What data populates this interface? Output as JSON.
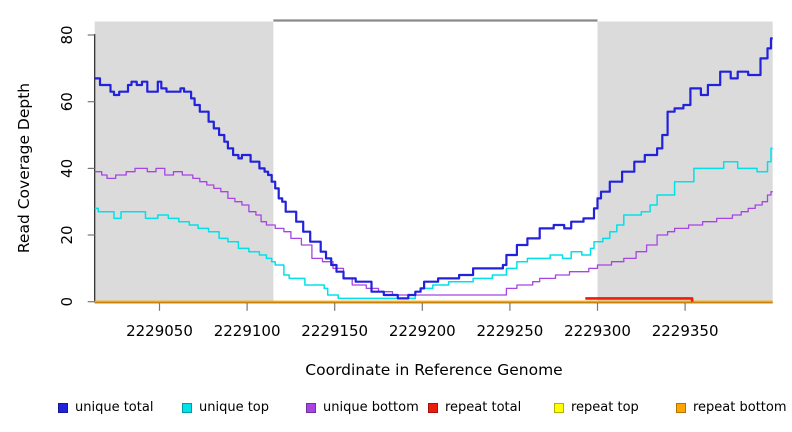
{
  "figure": {
    "background": "#ffffff"
  },
  "chart_data": {
    "type": "line",
    "title": "",
    "xlabel": "Coordinate in Reference Genome",
    "ylabel": "Read Coverage Depth",
    "xlim": [
      2229013,
      2229400
    ],
    "ylim": [
      0,
      80
    ],
    "x_ticks": [
      2229050,
      2229100,
      2229150,
      2229200,
      2229250,
      2229300,
      2229350
    ],
    "y_ticks": [
      0,
      20,
      40,
      60,
      80
    ],
    "grid": false,
    "legend_position": "bottom",
    "shaded_regions": [
      {
        "from": 2229013,
        "to": 2229115,
        "color": "#dbdbdb"
      },
      {
        "from": 2229300,
        "to": 2229400,
        "color": "#dbdbdb"
      }
    ],
    "unique_region_bar": {
      "from": 2229115,
      "to": 2229300,
      "color": "#8a8a8a"
    },
    "series": [
      {
        "name": "unique total",
        "color": "#2222da",
        "width": 2.2,
        "points": [
          [
            2229013,
            67
          ],
          [
            2229016,
            65
          ],
          [
            2229022,
            63
          ],
          [
            2229024,
            62
          ],
          [
            2229027,
            63
          ],
          [
            2229032,
            65
          ],
          [
            2229034,
            66
          ],
          [
            2229037,
            65
          ],
          [
            2229040,
            66
          ],
          [
            2229043,
            63
          ],
          [
            2229049,
            66
          ],
          [
            2229051,
            64
          ],
          [
            2229054,
            63
          ],
          [
            2229062,
            64
          ],
          [
            2229064,
            63
          ],
          [
            2229068,
            61
          ],
          [
            2229070,
            59
          ],
          [
            2229073,
            57
          ],
          [
            2229078,
            54
          ],
          [
            2229081,
            52
          ],
          [
            2229084,
            50
          ],
          [
            2229087,
            48
          ],
          [
            2229089,
            46
          ],
          [
            2229092,
            44
          ],
          [
            2229095,
            43
          ],
          [
            2229097,
            44
          ],
          [
            2229102,
            42
          ],
          [
            2229107,
            40
          ],
          [
            2229110,
            39
          ],
          [
            2229112,
            38
          ],
          [
            2229114,
            36
          ],
          [
            2229116,
            34
          ],
          [
            2229118,
            31
          ],
          [
            2229120,
            30
          ],
          [
            2229122,
            27
          ],
          [
            2229128,
            24
          ],
          [
            2229132,
            21
          ],
          [
            2229136,
            18
          ],
          [
            2229142,
            15
          ],
          [
            2229145,
            13
          ],
          [
            2229148,
            11
          ],
          [
            2229151,
            9
          ],
          [
            2229155,
            7
          ],
          [
            2229162,
            6
          ],
          [
            2229171,
            3
          ],
          [
            2229178,
            2
          ],
          [
            2229186,
            1
          ],
          [
            2229192,
            2
          ],
          [
            2229196,
            3
          ],
          [
            2229199,
            4
          ],
          [
            2229201,
            6
          ],
          [
            2229209,
            7
          ],
          [
            2229221,
            8
          ],
          [
            2229229,
            10
          ],
          [
            2229246,
            11
          ],
          [
            2229248,
            14
          ],
          [
            2229254,
            17
          ],
          [
            2229260,
            19
          ],
          [
            2229267,
            22
          ],
          [
            2229275,
            23
          ],
          [
            2229281,
            22
          ],
          [
            2229285,
            24
          ],
          [
            2229292,
            25
          ],
          [
            2229298,
            28
          ],
          [
            2229300,
            31
          ],
          [
            2229302,
            33
          ],
          [
            2229307,
            36
          ],
          [
            2229314,
            39
          ],
          [
            2229321,
            42
          ],
          [
            2229327,
            44
          ],
          [
            2229334,
            46
          ],
          [
            2229337,
            50
          ],
          [
            2229340,
            57
          ],
          [
            2229344,
            58
          ],
          [
            2229349,
            59
          ],
          [
            2229353,
            64
          ],
          [
            2229359,
            62
          ],
          [
            2229363,
            65
          ],
          [
            2229370,
            69
          ],
          [
            2229376,
            67
          ],
          [
            2229380,
            69
          ],
          [
            2229386,
            68
          ],
          [
            2229393,
            73
          ],
          [
            2229397,
            76
          ],
          [
            2229399,
            79
          ],
          [
            2229400,
            79
          ]
        ]
      },
      {
        "name": "unique top",
        "color": "#00e1ea",
        "width": 1.5,
        "points": [
          [
            2229013,
            28
          ],
          [
            2229015,
            27
          ],
          [
            2229024,
            25
          ],
          [
            2229028,
            27
          ],
          [
            2229042,
            25
          ],
          [
            2229049,
            26
          ],
          [
            2229055,
            25
          ],
          [
            2229061,
            24
          ],
          [
            2229067,
            23
          ],
          [
            2229072,
            22
          ],
          [
            2229078,
            21
          ],
          [
            2229084,
            19
          ],
          [
            2229089,
            18
          ],
          [
            2229095,
            16
          ],
          [
            2229101,
            15
          ],
          [
            2229107,
            14
          ],
          [
            2229111,
            13
          ],
          [
            2229114,
            12
          ],
          [
            2229116,
            11
          ],
          [
            2229121,
            8
          ],
          [
            2229124,
            7
          ],
          [
            2229133,
            5
          ],
          [
            2229144,
            4
          ],
          [
            2229146,
            2
          ],
          [
            2229152,
            1
          ],
          [
            2229190,
            1
          ],
          [
            2229196,
            3
          ],
          [
            2229199,
            4
          ],
          [
            2229206,
            5
          ],
          [
            2229215,
            6
          ],
          [
            2229229,
            7
          ],
          [
            2229240,
            8
          ],
          [
            2229248,
            10
          ],
          [
            2229254,
            12
          ],
          [
            2229260,
            13
          ],
          [
            2229273,
            14
          ],
          [
            2229280,
            13
          ],
          [
            2229285,
            15
          ],
          [
            2229291,
            14
          ],
          [
            2229296,
            16
          ],
          [
            2229298,
            18
          ],
          [
            2229303,
            19
          ],
          [
            2229307,
            21
          ],
          [
            2229311,
            23
          ],
          [
            2229315,
            26
          ],
          [
            2229325,
            27
          ],
          [
            2229330,
            29
          ],
          [
            2229334,
            32
          ],
          [
            2229344,
            36
          ],
          [
            2229355,
            40
          ],
          [
            2229372,
            42
          ],
          [
            2229380,
            40
          ],
          [
            2229391,
            39
          ],
          [
            2229397,
            42
          ],
          [
            2229399,
            46
          ],
          [
            2229400,
            46
          ]
        ]
      },
      {
        "name": "unique bottom",
        "color": "#a644e4",
        "width": 1.3,
        "points": [
          [
            2229013,
            39
          ],
          [
            2229017,
            38
          ],
          [
            2229020,
            37
          ],
          [
            2229025,
            38
          ],
          [
            2229031,
            39
          ],
          [
            2229036,
            40
          ],
          [
            2229043,
            39
          ],
          [
            2229048,
            40
          ],
          [
            2229053,
            38
          ],
          [
            2229058,
            39
          ],
          [
            2229063,
            38
          ],
          [
            2229069,
            37
          ],
          [
            2229073,
            36
          ],
          [
            2229077,
            35
          ],
          [
            2229081,
            34
          ],
          [
            2229085,
            33
          ],
          [
            2229089,
            31
          ],
          [
            2229093,
            30
          ],
          [
            2229097,
            29
          ],
          [
            2229101,
            27
          ],
          [
            2229105,
            26
          ],
          [
            2229108,
            24
          ],
          [
            2229111,
            23
          ],
          [
            2229116,
            22
          ],
          [
            2229121,
            21
          ],
          [
            2229125,
            19
          ],
          [
            2229131,
            17
          ],
          [
            2229137,
            13
          ],
          [
            2229143,
            12
          ],
          [
            2229149,
            10
          ],
          [
            2229155,
            7
          ],
          [
            2229160,
            5
          ],
          [
            2229168,
            4
          ],
          [
            2229175,
            3
          ],
          [
            2229183,
            2
          ],
          [
            2229246,
            2
          ],
          [
            2229248,
            4
          ],
          [
            2229254,
            5
          ],
          [
            2229263,
            6
          ],
          [
            2229267,
            7
          ],
          [
            2229276,
            8
          ],
          [
            2229284,
            9
          ],
          [
            2229295,
            10
          ],
          [
            2229300,
            11
          ],
          [
            2229308,
            12
          ],
          [
            2229315,
            13
          ],
          [
            2229322,
            15
          ],
          [
            2229328,
            17
          ],
          [
            2229334,
            20
          ],
          [
            2229340,
            21
          ],
          [
            2229344,
            22
          ],
          [
            2229352,
            23
          ],
          [
            2229360,
            24
          ],
          [
            2229368,
            25
          ],
          [
            2229377,
            26
          ],
          [
            2229382,
            27
          ],
          [
            2229386,
            28
          ],
          [
            2229390,
            29
          ],
          [
            2229394,
            30
          ],
          [
            2229397,
            32
          ],
          [
            2229399,
            33
          ],
          [
            2229400,
            33
          ]
        ]
      },
      {
        "name": "repeat total",
        "color": "#ee1c0c",
        "width": 2.6,
        "points": [
          [
            2229293,
            1
          ],
          [
            2229354,
            1
          ],
          [
            2229354,
            0
          ]
        ]
      },
      {
        "name": "repeat top",
        "color": "#ffff00",
        "width": 1.5,
        "points": [
          [
            2229013,
            0
          ],
          [
            2229400,
            0
          ]
        ]
      },
      {
        "name": "repeat bottom",
        "color": "#ffa500",
        "width": 2.2,
        "points": [
          [
            2229013,
            0
          ],
          [
            2229400,
            0
          ]
        ]
      }
    ]
  }
}
